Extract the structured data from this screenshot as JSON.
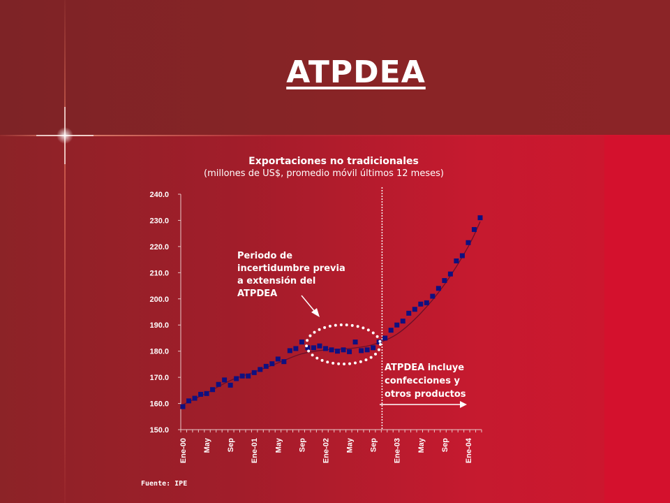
{
  "slide": {
    "title": "ATPDEA",
    "source": "Fuente: IPE"
  },
  "colors": {
    "marker": "#0f1080",
    "line": "#6a0f2a",
    "text": "#ffffff"
  },
  "chart_data": {
    "type": "scatter",
    "title": "Exportaciones no tradicionales",
    "subtitle": "(millones de US$, promedio móvil últimos 12 meses)",
    "ylim": [
      150,
      240
    ],
    "yticks": [
      "150.0",
      "160.0",
      "170.0",
      "180.0",
      "190.0",
      "200.0",
      "210.0",
      "220.0",
      "230.0",
      "240.0"
    ],
    "xticks": [
      "Ene-00",
      "May",
      "Sep",
      "Ene-01",
      "May",
      "Sep",
      "Ene-02",
      "May",
      "Sep",
      "Ene-03",
      "May",
      "Sep",
      "Ene-04"
    ],
    "series": [
      {
        "marker": "square",
        "x": [
          1,
          2,
          3,
          4,
          5,
          6,
          7,
          8,
          9,
          10,
          11,
          12,
          13,
          14,
          15,
          16,
          17,
          18,
          19,
          20,
          21,
          22,
          23,
          24,
          25,
          26,
          27,
          28,
          29,
          30,
          31,
          32,
          33,
          34,
          35,
          36,
          37,
          38,
          39,
          40,
          41,
          42,
          43,
          44,
          45,
          46,
          47,
          48,
          49,
          50,
          51
        ],
        "values": [
          158.8,
          161.0,
          162.0,
          163.5,
          163.8,
          165.3,
          167.3,
          169.0,
          167.0,
          169.5,
          170.5,
          170.5,
          171.8,
          173.0,
          174.2,
          175.2,
          177.0,
          176.0,
          180.2,
          181.0,
          183.5,
          181.3,
          181.3,
          182.0,
          181.0,
          180.5,
          180.0,
          180.5,
          179.8,
          183.5,
          180.2,
          180.5,
          181.3,
          183.5,
          185.0,
          188.0,
          190.0,
          191.5,
          194.5,
          196.0,
          198.0,
          198.5,
          201.0,
          204.0,
          207.0,
          209.5,
          214.5,
          216.5,
          221.5,
          226.5,
          231.0
        ]
      }
    ],
    "trend": {
      "x": [
        1,
        5,
        9,
        13,
        17,
        21,
        25,
        29,
        33,
        37,
        41,
        45,
        49,
        51
      ],
      "values": [
        159.5,
        164.0,
        168.8,
        172.0,
        175.5,
        179.0,
        180.5,
        181.0,
        182.5,
        186.5,
        194.5,
        205.5,
        220.0,
        229.5
      ]
    },
    "divider_x": 34.5,
    "annotations": {
      "uncertainty": [
        "Periodo de",
        "incertidumbre previa",
        "a extensión del",
        "ATPDEA"
      ],
      "atpdea": [
        "ATPDEA incluye",
        "confecciones y",
        "otros productos"
      ]
    }
  }
}
